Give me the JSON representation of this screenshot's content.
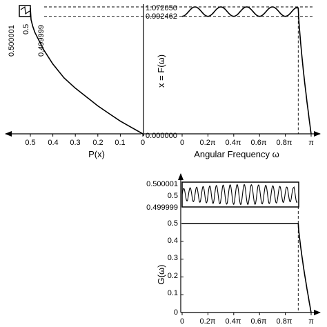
{
  "chart_data": [
    {
      "panel": "top-left",
      "type": "line",
      "x_axis_label": "P(x)",
      "x_tick_labels": [
        "0.5",
        "0.4",
        "0.3",
        "0.2",
        "0.1",
        "0"
      ],
      "x_ticks": [
        0.5,
        0.4,
        0.3,
        0.2,
        0.1,
        0.0
      ],
      "x_direction": "reversed (increasing to the left)",
      "inset_y_tick_labels": [
        "0.500001",
        "0.5",
        "0.499999"
      ],
      "series": [
        {
          "note": "P plotted against x; x axis shared with the right panel (0 to 1.072050)",
          "x_values": [
            0.5,
            0.497,
            0.49,
            0.48,
            0.46,
            0.44,
            0.4,
            0.35,
            0.3,
            0.25,
            0.2,
            0.15,
            0.1,
            0.05,
            0.0
          ],
          "y_values": [
            0.99,
            0.9,
            0.85,
            0.8,
            0.73,
            0.66,
            0.55,
            0.44,
            0.36,
            0.29,
            0.22,
            0.16,
            0.1,
            0.05,
            0.0
          ]
        }
      ]
    },
    {
      "panel": "top-right",
      "type": "line",
      "y_axis_label": "x = F(ω)",
      "x_axis_label": "Angular Frequency ω",
      "y_tick_labels": [
        "1.072050",
        "0.992462",
        "0.000000"
      ],
      "y_ticks": [
        1.07205,
        0.992462,
        0.0
      ],
      "y_range": [
        0,
        1.07205
      ],
      "x_tick_labels": [
        "0",
        "0.2π",
        "0.4π",
        "0.6π",
        "0.8π",
        "π"
      ],
      "x_ticks": [
        0,
        0.2,
        0.4,
        0.6,
        0.8,
        1.0
      ],
      "x_unit": "π",
      "x_range": [
        0,
        1.0
      ],
      "passband_edge": 0.9,
      "ripple": {
        "max": 1.07205,
        "min": 0.992462,
        "peaks": 5
      }
    },
    {
      "panel": "bottom-right",
      "type": "line",
      "y_axis_label": "G(ω)",
      "y_tick_labels": [
        "0.5",
        "0.4",
        "0.3",
        "0.2",
        "0.1",
        "0"
      ],
      "y_ticks": [
        0.5,
        0.4,
        0.3,
        0.2,
        0.1,
        0.0
      ],
      "y_range": [
        0,
        0.5
      ],
      "x_tick_labels": [
        "0",
        "0.2π",
        "0.4π",
        "0.6π",
        "0.8π",
        "π"
      ],
      "x_ticks": [
        0,
        0.2,
        0.4,
        0.6,
        0.8,
        1.0
      ],
      "x_range": [
        0,
        1.0
      ],
      "passband_value": 0.5,
      "passband_edge": 0.9,
      "inset_y_tick_labels": [
        "0.500001",
        "0.5",
        "0.499999"
      ],
      "inset_y_range": [
        0.499999,
        0.500001
      ]
    }
  ]
}
